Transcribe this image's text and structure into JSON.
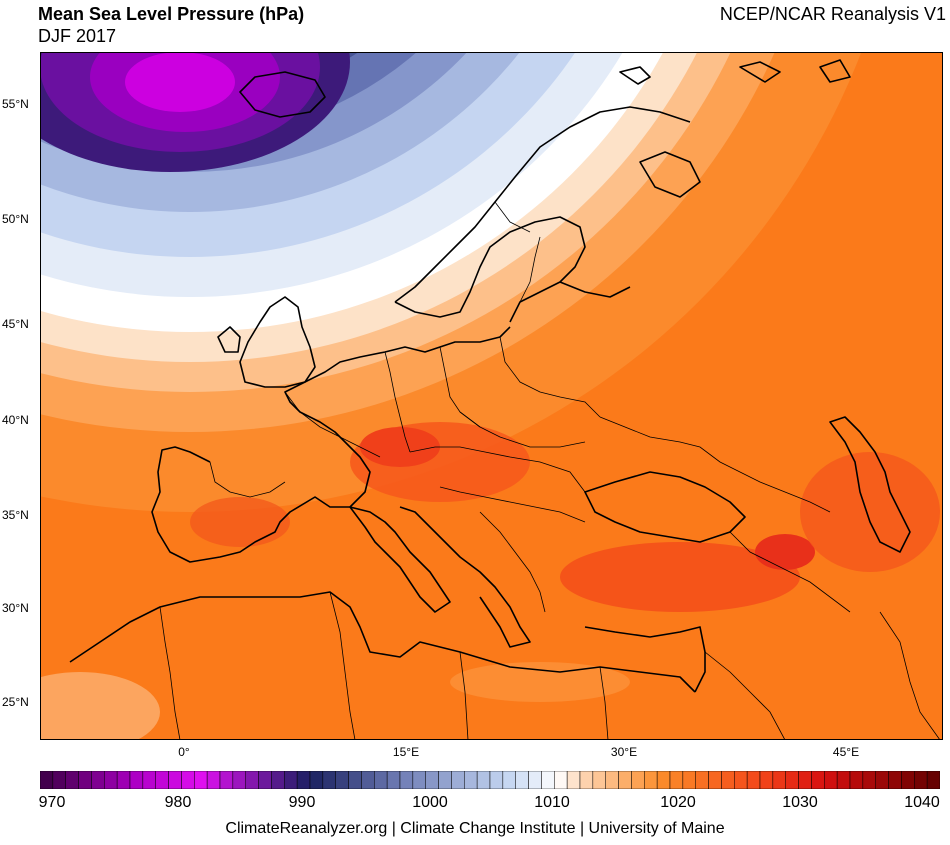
{
  "header": {
    "title": "Mean Sea Level Pressure (hPa)",
    "subtitle": "DJF 2017",
    "source": "NCEP/NCAR Reanalysis V1"
  },
  "map": {
    "lat_labels": [
      "55°N",
      "50°N",
      "45°N",
      "40°N",
      "35°N",
      "30°N",
      "25°N"
    ],
    "lon_labels": [
      "0°",
      "15°E",
      "30°E",
      "45°E"
    ]
  },
  "colorbar": {
    "ticks": [
      "970",
      "980",
      "990",
      "1000",
      "1010",
      "1020",
      "1030",
      "1040"
    ],
    "colors": {
      "low": "#3a0043",
      "violet": "#b000c8",
      "magenta": "#e010f0",
      "navy": "#1a2060",
      "slate": "#6f7db5",
      "light_blue": "#c4d6f2",
      "white": "#ffffff",
      "peach": "#fdd8b8",
      "orange": "#fb8c2a",
      "red_orange": "#f4481a",
      "red": "#d81010",
      "dark_red": "#600000"
    }
  },
  "footer": {
    "credits": "ClimateReanalyzer.org | Climate Change Institute | University of Maine"
  }
}
